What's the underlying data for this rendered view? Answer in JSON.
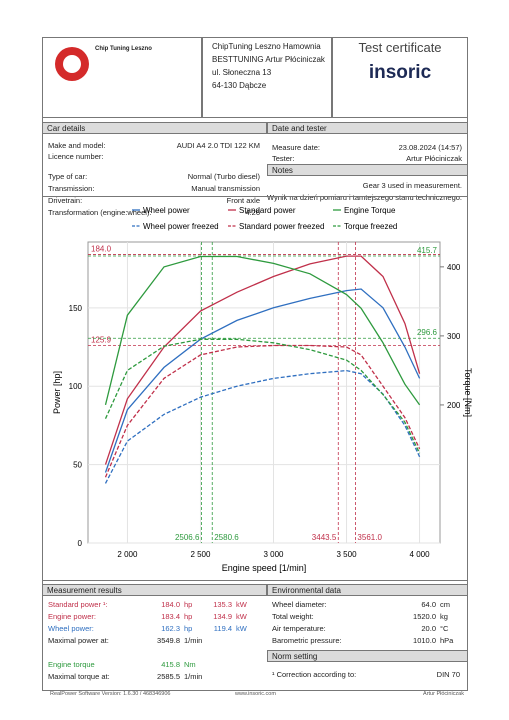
{
  "header": {
    "logo_title": "Chip Tuning Leszno",
    "company": [
      "ChipTuning Leszno Hamownia",
      "BESTTUNING Artur Płóciniczak",
      "ul. Słoneczna 13",
      "64-130 Dąbcze"
    ],
    "title": "Test certificate",
    "brand": "insoric"
  },
  "car_details": {
    "heading": "Car details",
    "rows": [
      [
        "Make and model:",
        "AUDI A4 2.0 TDI 122 KM"
      ],
      [
        "Licence number:"
      ],
      [
        "Type of car:",
        "Normal (Turbo diesel)"
      ],
      [
        "Transmission:",
        "Manual transmission"
      ],
      [
        "Drivetrain:",
        "Front axle"
      ],
      [
        "Transformation (engine:wheel):",
        "4.26"
      ]
    ]
  },
  "date_tester": {
    "heading": "Date and tester",
    "rows": [
      [
        "Measure date:",
        "23.08.2024 (14:57)"
      ],
      [
        "Tester:",
        "Artur Płóciniczak"
      ]
    ]
  },
  "notes": {
    "heading": "Notes",
    "lines": [
      "Gear 3 used in measurement.",
      "Wynik na dzień pomiaru i tamtejszego stanu technicznego."
    ]
  },
  "chart": {
    "type": "line",
    "x_label": "Engine speed [1/min]",
    "y_label": "Power [hp]",
    "y2_label": "Torque [Nm]",
    "xlim": [
      1730,
      4140
    ],
    "xticks": [
      {
        "value": 2000,
        "label": "2 000"
      },
      {
        "value": 2500,
        "label": "2 500"
      },
      {
        "value": 3000,
        "label": "3 000"
      },
      {
        "value": 3500,
        "label": "3 500"
      },
      {
        "value": 4000,
        "label": "4 000"
      }
    ],
    "ylim": [
      0,
      192
    ],
    "yticks": [
      0,
      50,
      100,
      150
    ],
    "y2lim": [
      0,
      436
    ],
    "y2ticks": [
      200,
      300,
      400
    ],
    "x": [
      1850,
      2000,
      2250,
      2500,
      2750,
      3000,
      3250,
      3500,
      3600,
      3750,
      3900,
      4000
    ],
    "series": [
      {
        "name": "Wheel power",
        "color": "#2f6fc0",
        "dash": false,
        "values": [
          45,
          85,
          112,
          130,
          142,
          150,
          156,
          161,
          162,
          150,
          125,
          105
        ]
      },
      {
        "name": "Standard power",
        "color": "#c0304a",
        "dash": false,
        "values": [
          50,
          92,
          125,
          148,
          160,
          170,
          178,
          183,
          183,
          170,
          140,
          108
        ]
      },
      {
        "name": "Engine Torque",
        "color": "#2e9a3e",
        "dash": false,
        "axis": "y2",
        "values": [
          200,
          330,
          400,
          415,
          415,
          405,
          390,
          360,
          340,
          290,
          230,
          200
        ]
      },
      {
        "name": "Wheel power freezed",
        "color": "#2f6fc0",
        "dash": true,
        "values": [
          38,
          65,
          82,
          93,
          100,
          105,
          108,
          110,
          108,
          95,
          75,
          55
        ]
      },
      {
        "name": "Standard power freezed",
        "color": "#c0304a",
        "dash": true,
        "values": [
          42,
          75,
          105,
          120,
          125,
          126,
          126,
          125,
          120,
          100,
          80,
          60
        ]
      },
      {
        "name": "Torque freezed",
        "color": "#2e9a3e",
        "dash": true,
        "axis": "y2",
        "values": [
          180,
          250,
          285,
          295,
          295,
          290,
          280,
          265,
          250,
          215,
          175,
          130
        ]
      }
    ],
    "ref_y": [
      {
        "value": 184.0,
        "label": "184.0",
        "axis": "y",
        "color": "#c0304a"
      },
      {
        "value": 415.7,
        "label": "415.7",
        "axis": "y2",
        "color": "#2e9a3e"
      },
      {
        "value": 125.9,
        "label": "125.9",
        "axis": "y",
        "color": "#c0304a"
      },
      {
        "value": 296.6,
        "label": "296.6",
        "axis": "y2",
        "color": "#2e9a3e"
      }
    ],
    "ref_x": [
      {
        "value": 2506.6,
        "label": "2506.6",
        "color": "#2e9a3e"
      },
      {
        "value": 2580.6,
        "label": "2580.6",
        "color": "#2e9a3e"
      },
      {
        "value": 3443.5,
        "label": "3443.5",
        "color": "#c0304a"
      },
      {
        "value": 3561.0,
        "label": "3561.0",
        "color": "#c0304a"
      }
    ]
  },
  "measurement_results": {
    "heading": "Measurement results",
    "rows": [
      [
        "Standard power ¹:",
        "184.0",
        "hp",
        "135.3",
        "kW"
      ],
      [
        "Engine power:",
        "183.4",
        "hp",
        "134.9",
        "kW"
      ],
      [
        "Wheel power:",
        "162.3",
        "hp",
        "119.4",
        "kW"
      ],
      [
        "Maximal power at:",
        "3549.8",
        "1/min"
      ],
      [
        "Engine torque",
        "415.8",
        "Nm"
      ],
      [
        "Maximal torque at:",
        "2585.5",
        "1/min"
      ]
    ]
  },
  "environmental": {
    "heading": "Environmental data",
    "rows": [
      [
        "Wheel diameter:",
        "64.0",
        "cm"
      ],
      [
        "Total weight:",
        "1520.0",
        "kg"
      ],
      [
        "Air temperature:",
        "20.0",
        "°C"
      ],
      [
        "Barometric pressure:",
        "1010.0",
        "hPa"
      ]
    ]
  },
  "norm_setting": {
    "heading": "Norm setting",
    "rows": [
      [
        "¹ Correction according to:",
        "DIN 70"
      ]
    ]
  },
  "footer": [
    "RealPower Software Version: 1.6.30 / 468346906",
    "www.insoric.com",
    "Artur Płóciniczak"
  ]
}
